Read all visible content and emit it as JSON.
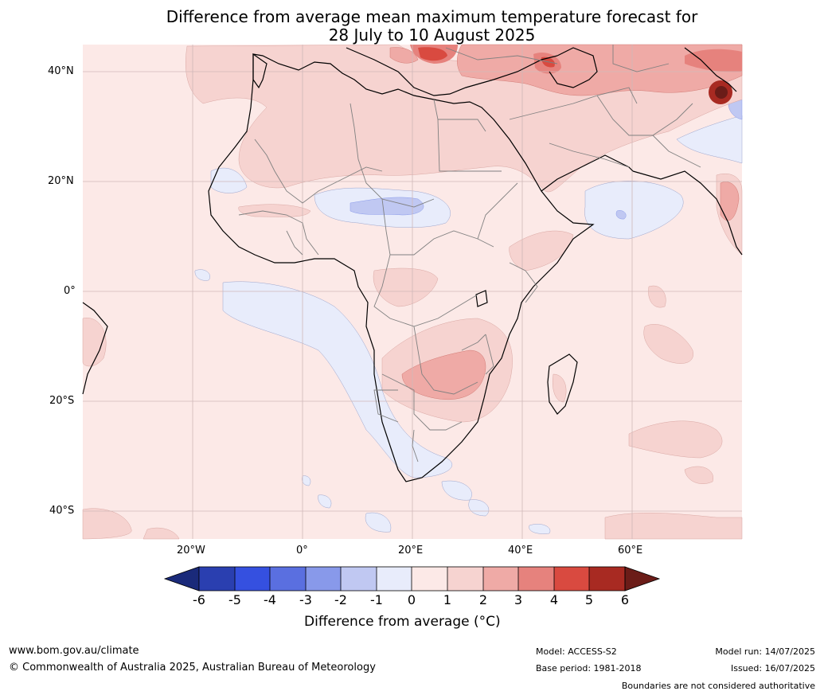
{
  "title": {
    "line1": "Difference from average mean maximum temperature forecast for",
    "line2": "28 July to 10 August 2025"
  },
  "axes": {
    "lat_labels": [
      "40°N",
      "20°N",
      "0°",
      "20°S",
      "40°S"
    ],
    "lon_labels": [
      "20°W",
      "0°",
      "20°E",
      "40°E",
      "60°E"
    ]
  },
  "colorbar": {
    "ticks": [
      "-6",
      "-5",
      "-4",
      "-3",
      "-2",
      "-1",
      "0",
      "1",
      "2",
      "3",
      "4",
      "5",
      "6"
    ],
    "colors": [
      "#1a2a7a",
      "#2a3fb0",
      "#3550e0",
      "#5a6fe0",
      "#8899ea",
      "#c0c8f2",
      "#e8ecfb",
      "#fce9e7",
      "#f6d3d0",
      "#efaaa6",
      "#e6827d",
      "#d94a40",
      "#a82a22",
      "#6b1c18"
    ],
    "label": "Difference from average (°C)"
  },
  "footer": {
    "website": "www.bom.gov.au/climate",
    "copyright": "© Commonwealth of Australia 2025, Australian Bureau of Meteorology",
    "model": "Model: ACCESS-S2",
    "base_period": "Base period: 1981-2018",
    "model_run": "Model run: 14/07/2025",
    "issued": "Issued: 16/07/2025",
    "disclaimer": "Boundaries are not considered authoritative"
  }
}
